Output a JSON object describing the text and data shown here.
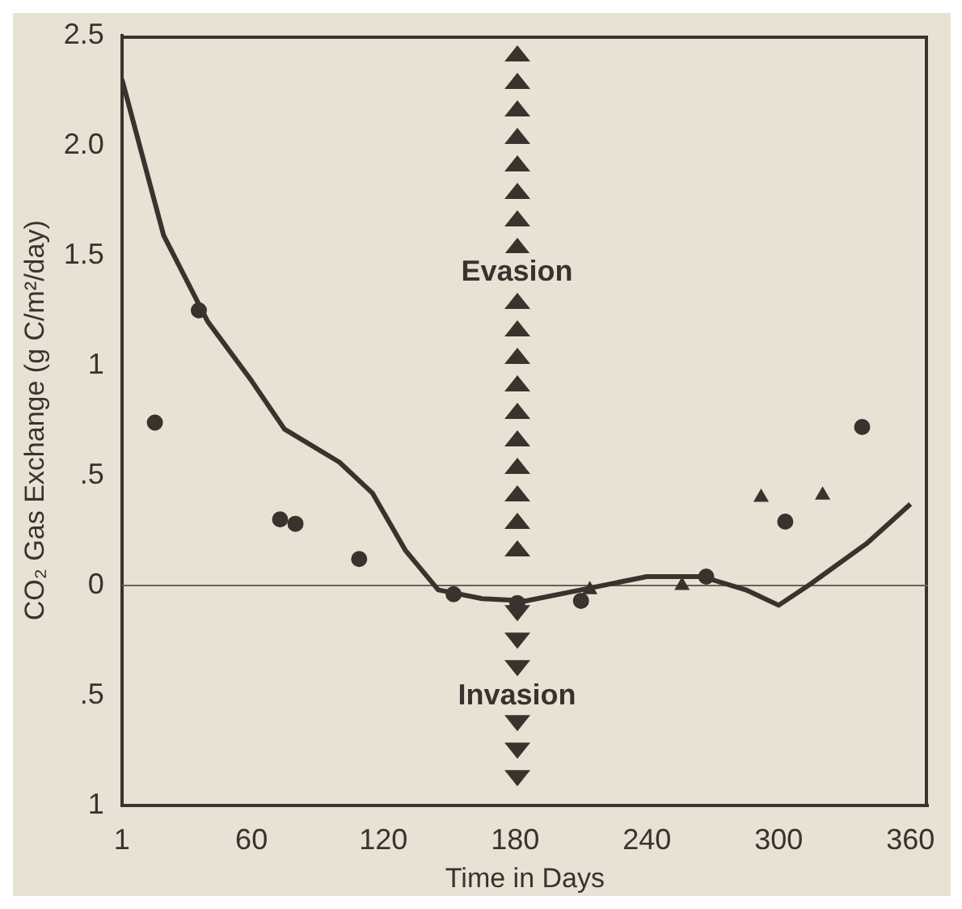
{
  "chart_data": {
    "type": "line",
    "xlabel": "Time in Days",
    "ylabel": "CO₂ Gas Exchange (g C/m²/day)",
    "xlim": [
      1,
      368
    ],
    "xticks": [
      1,
      60,
      120,
      180,
      240,
      300,
      360
    ],
    "ylim": [
      -1,
      2.5
    ],
    "yticks": [
      {
        "value": -1,
        "label": "1"
      },
      {
        "value": -0.5,
        "label": ".5"
      },
      {
        "value": 0,
        "label": "0"
      },
      {
        "value": 0.5,
        "label": ".5"
      },
      {
        "value": 1,
        "label": "1"
      },
      {
        "value": 1.5,
        "label": "1.5"
      },
      {
        "value": 2,
        "label": "2.0"
      },
      {
        "value": 2.5,
        "label": "2.5"
      }
    ],
    "grid": false,
    "series": [
      {
        "color": "#3b322e",
        "marker": "none",
        "line_style": "solid",
        "x": [
          1,
          20,
          40,
          60,
          75,
          100,
          115,
          130,
          145,
          165,
          185,
          210,
          240,
          265,
          285,
          300,
          315,
          340,
          360
        ],
        "values": [
          2.3,
          1.59,
          1.2,
          0.93,
          0.71,
          0.56,
          0.42,
          0.16,
          -0.02,
          -0.06,
          -0.07,
          -0.02,
          0.04,
          0.04,
          -0.02,
          -0.09,
          0.01,
          0.19,
          0.37
        ]
      },
      {
        "type": "scatter",
        "color": "#3b322e",
        "marker": "circle",
        "x": [
          16,
          36,
          73,
          80,
          109,
          152,
          181,
          210,
          267,
          303,
          338
        ],
        "values": [
          0.74,
          1.25,
          0.3,
          0.28,
          0.12,
          -0.04,
          -0.08,
          -0.07,
          0.04,
          0.29,
          0.72
        ]
      },
      {
        "type": "scatter",
        "color": "#3b322e",
        "marker": "triangle",
        "x": [
          214,
          256,
          292,
          320
        ],
        "values": [
          -0.02,
          0.0,
          0.4,
          0.41
        ]
      }
    ],
    "ref_lines": [
      {
        "axis": "y",
        "value": 0,
        "color": "#6b5f58"
      }
    ],
    "annotations": [
      "Evasion",
      "Invasion"
    ]
  }
}
